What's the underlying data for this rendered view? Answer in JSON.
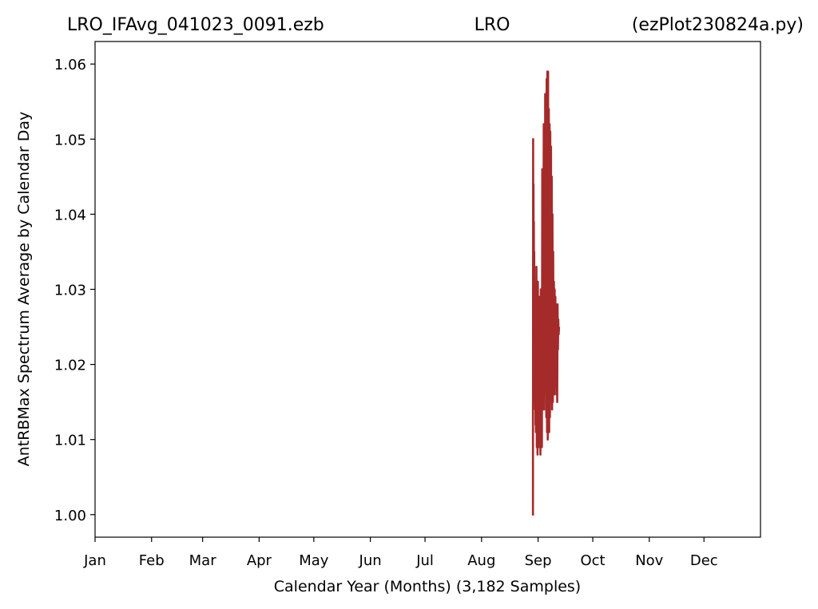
{
  "chart_data": {
    "type": "line",
    "title_parts": [
      "LRO_IFAvg_041023_0091.ezb",
      "LRO",
      "(ezPlot230824a.py)"
    ],
    "xlabel": "Calendar Year (Months) (3,182 Samples)",
    "ylabel": "AntRBMax Spectrum Average by Calendar Day",
    "x_unit": "day_of_year",
    "xlim": [
      1,
      366
    ],
    "ylim": [
      0.997,
      1.063
    ],
    "x_ticks": [
      {
        "label": "Jan",
        "day": 1
      },
      {
        "label": "Feb",
        "day": 32
      },
      {
        "label": "Mar",
        "day": 60
      },
      {
        "label": "Apr",
        "day": 91
      },
      {
        "label": "May",
        "day": 121
      },
      {
        "label": "Jun",
        "day": 152
      },
      {
        "label": "Jul",
        "day": 182
      },
      {
        "label": "Aug",
        "day": 213
      },
      {
        "label": "Sep",
        "day": 244
      },
      {
        "label": "Oct",
        "day": 274
      },
      {
        "label": "Nov",
        "day": 305
      },
      {
        "label": "Dec",
        "day": 335
      }
    ],
    "y_ticks": [
      {
        "label": "1.00",
        "value": 1.0
      },
      {
        "label": "1.01",
        "value": 1.01
      },
      {
        "label": "1.02",
        "value": 1.02
      },
      {
        "label": "1.03",
        "value": 1.03
      },
      {
        "label": "1.04",
        "value": 1.04
      },
      {
        "label": "1.05",
        "value": 1.05
      },
      {
        "label": "1.06",
        "value": 1.06
      }
    ],
    "grid": false,
    "legend": "none",
    "series_color": "#a52a2a",
    "series": [
      {
        "x": [
          241.2,
          241.2,
          241.3,
          241.4,
          241.5,
          241.6,
          241.7,
          241.8,
          241.9,
          242.0,
          242.1,
          242.2,
          242.3,
          242.4,
          242.5,
          242.6,
          242.7,
          242.8,
          242.9,
          243.0,
          243.1,
          243.3,
          243.5,
          243.7,
          243.9,
          244.1,
          244.3,
          244.5,
          244.7,
          244.9,
          245.1,
          245.3,
          245.5,
          245.7,
          245.9,
          246.1,
          246.3,
          246.5,
          246.7,
          246.9,
          247.1,
          247.3,
          247.5,
          247.7,
          247.9,
          248.1,
          248.3,
          248.5,
          248.7,
          248.9,
          249.1,
          249.3,
          249.5,
          249.7,
          249.9,
          250.1,
          250.3,
          250.5,
          250.7,
          250.9,
          251.1,
          251.3,
          251.5,
          251.7,
          251.9,
          252.1,
          252.3,
          252.5,
          252.7,
          252.9,
          253.1,
          253.3,
          253.5,
          253.7,
          253.9,
          254.1,
          254.3,
          254.5,
          254.7,
          254.9,
          255.1,
          255.3,
          255.5
        ],
        "y": [
          1.015,
          1.0,
          1.05,
          1.015,
          1.044,
          1.017,
          1.039,
          1.018,
          1.035,
          1.017,
          1.031,
          1.016,
          1.029,
          1.014,
          1.027,
          1.012,
          1.025,
          1.011,
          1.03,
          1.013,
          1.033,
          1.009,
          1.028,
          1.008,
          1.031,
          1.01,
          1.027,
          1.009,
          1.029,
          1.01,
          1.026,
          1.008,
          1.03,
          1.011,
          1.025,
          1.009,
          1.046,
          1.014,
          1.046,
          1.016,
          1.052,
          1.014,
          1.05,
          1.017,
          1.056,
          1.016,
          1.055,
          1.013,
          1.058,
          1.011,
          1.059,
          1.01,
          1.059,
          1.012,
          1.054,
          1.011,
          1.052,
          1.013,
          1.051,
          1.015,
          1.049,
          1.016,
          1.045,
          1.014,
          1.04,
          1.015,
          1.035,
          1.017,
          1.031,
          1.016,
          1.03,
          1.018,
          1.029,
          1.017,
          1.028,
          1.016,
          1.027,
          1.015,
          1.028,
          1.022,
          1.026,
          1.024,
          1.025
        ]
      }
    ]
  }
}
